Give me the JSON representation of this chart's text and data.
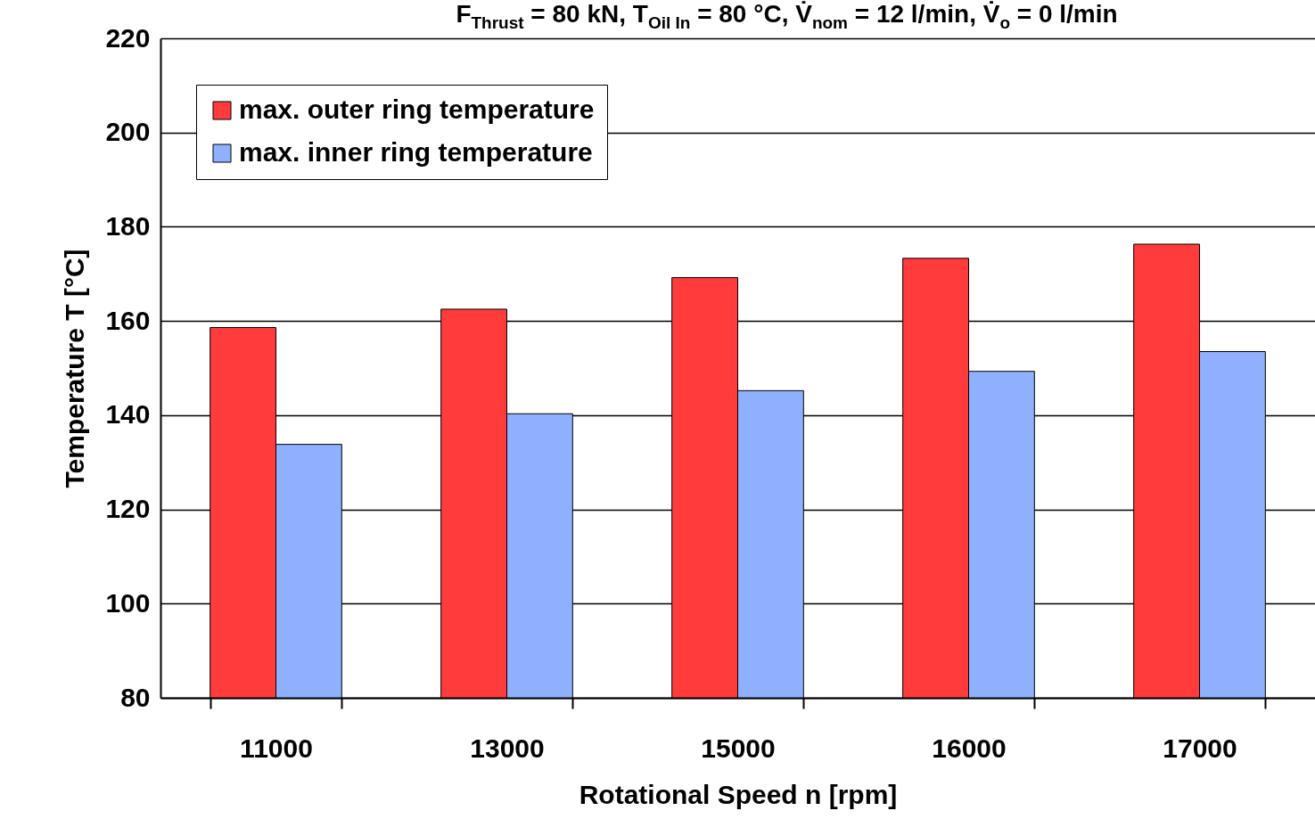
{
  "chart_data": {
    "type": "bar",
    "title": "F$_{Thrust}$ = 80 kN, T$_{Oil In}$ = 80 °C, V̇$_{nom}$ = 12 l/min, V̇$_{o}$ = 0 l/min",
    "xlabel": "Rotational Speed n [rpm]",
    "ylabel": "Temperature T [°C]",
    "categories": [
      "11000",
      "13000",
      "15000",
      "16000",
      "17000"
    ],
    "series": [
      {
        "name": "max. outer ring temperature",
        "color": "#ff3b3b",
        "values": [
          158.6,
          162.5,
          169.2,
          173.3,
          176.3
        ]
      },
      {
        "name": "max. inner ring temperature",
        "color": "#8fb0ff",
        "values": [
          133.8,
          140.3,
          145.2,
          149.3,
          153.5
        ]
      }
    ],
    "ylim": [
      80,
      220
    ],
    "yticks": [
      80,
      100,
      120,
      140,
      160,
      180,
      200,
      220
    ],
    "grid": "y",
    "legend": "top left"
  }
}
